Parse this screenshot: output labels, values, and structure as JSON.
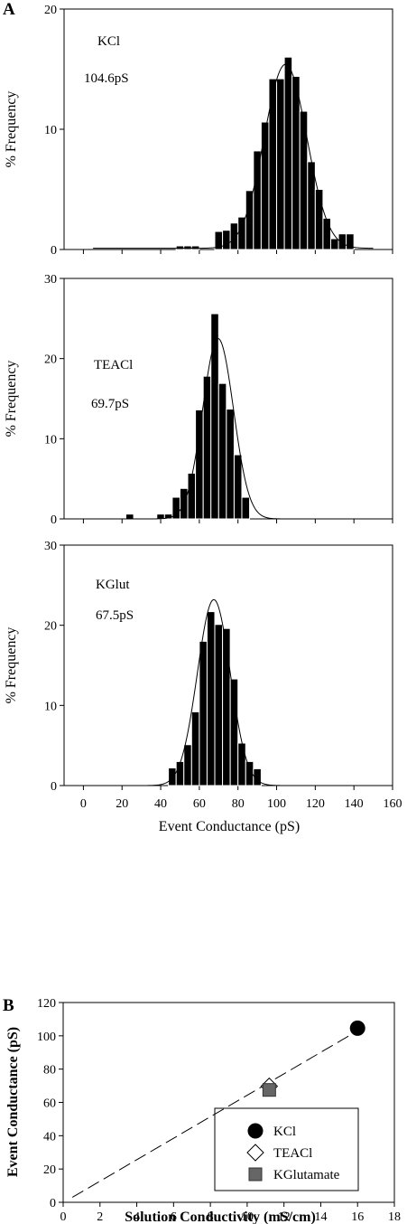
{
  "chart_data": [
    {
      "panel": "A",
      "type": "bar",
      "ylabel": "% Frequency",
      "ylim": [
        0,
        20
      ],
      "yticks": [
        "0",
        "10",
        "20"
      ],
      "annotation": [
        "KCl",
        "104.6pS"
      ],
      "bin_centers": [
        50,
        54,
        58,
        62,
        66,
        70,
        74,
        78,
        82,
        86,
        90,
        94,
        98,
        102,
        106,
        110,
        114,
        118,
        122,
        126,
        130,
        134,
        138
      ],
      "values": [
        0.3,
        0.3,
        0.3,
        0,
        0,
        1.5,
        1.6,
        2.2,
        2.7,
        4.9,
        8.2,
        10.6,
        14.2,
        14.2,
        16.0,
        14.4,
        11.5,
        7.3,
        5.0,
        2.6,
        0.9,
        1.3,
        1.3
      ],
      "fit": {
        "type": "gaussian",
        "mean": 104.6,
        "peak": 15.3,
        "sd": 11,
        "baseline": 0.1,
        "x_range": [
          5,
          150
        ]
      }
    },
    {
      "panel": "A",
      "type": "bar",
      "ylabel": "% Frequency",
      "ylim": [
        0,
        30
      ],
      "yticks": [
        "0",
        "10",
        "20",
        "30"
      ],
      "annotation": [
        "TEACl",
        "69.7pS"
      ],
      "bin_centers": [
        24,
        40,
        44,
        48,
        52,
        56,
        60,
        64,
        68,
        72,
        76,
        80,
        84
      ],
      "values": [
        0.6,
        0.6,
        0.6,
        2.7,
        3.8,
        5.7,
        13.6,
        17.8,
        25.6,
        16.9,
        13.7,
        8.0,
        2.7
      ],
      "fit": {
        "type": "gaussian",
        "mean": 69.7,
        "peak": 22.5,
        "sd": 8,
        "baseline": 0,
        "x_range": [
          5,
          150
        ]
      }
    },
    {
      "panel": "A",
      "type": "bar",
      "ylabel": "% Frequency",
      "ylim": [
        0,
        30
      ],
      "yticks": [
        "0",
        "10",
        "20",
        "30"
      ],
      "annotation": [
        "KGlut",
        "67.5pS"
      ],
      "bin_centers": [
        46,
        50,
        54,
        58,
        62,
        66,
        70,
        74,
        78,
        82,
        86,
        90
      ],
      "values": [
        2.2,
        3.0,
        5.1,
        9.2,
        18.0,
        21.7,
        20.1,
        19.6,
        13.3,
        5.3,
        3.0,
        2.1
      ],
      "fit": {
        "type": "gaussian",
        "mean": 67.5,
        "peak": 23.2,
        "sd": 8.5,
        "baseline": 0,
        "x_range": [
          5,
          150
        ]
      }
    },
    {
      "panel": "B",
      "type": "scatter",
      "xlabel": "Solution Conductivity (mS/cm)",
      "ylabel": "Event Conductance (pS)",
      "xlim": [
        0,
        18
      ],
      "ylim": [
        0,
        120
      ],
      "xticks": [
        "0",
        "2",
        "4",
        "6",
        "8",
        "10",
        "12",
        "14",
        "16",
        "18"
      ],
      "yticks": [
        "0",
        "20",
        "40",
        "60",
        "80",
        "100",
        "120"
      ],
      "legend_position": "bottom-right",
      "series": [
        {
          "name": "KCl",
          "x": [
            16.0
          ],
          "y": [
            104.6
          ],
          "marker": "circle",
          "color": "#000000"
        },
        {
          "name": "TEACl",
          "x": [
            11.2
          ],
          "y": [
            69.7
          ],
          "marker": "diamond",
          "color": "#ffffff"
        },
        {
          "name": "KGlutamate",
          "x": [
            11.2
          ],
          "y": [
            67.5
          ],
          "marker": "square",
          "color": "#666666"
        }
      ],
      "fit_line": {
        "style": "dashed",
        "from": [
          0.5,
          3
        ],
        "to": [
          16.0,
          103
        ]
      }
    }
  ],
  "shared_x_axis": {
    "label": "Event Conductance (pS)",
    "ticks": [
      "0",
      "20",
      "40",
      "60",
      "80",
      "100",
      "120",
      "140",
      "160"
    ],
    "xlim": [
      -10,
      160
    ]
  },
  "panel_labels": {
    "a": "A",
    "b": "B"
  }
}
